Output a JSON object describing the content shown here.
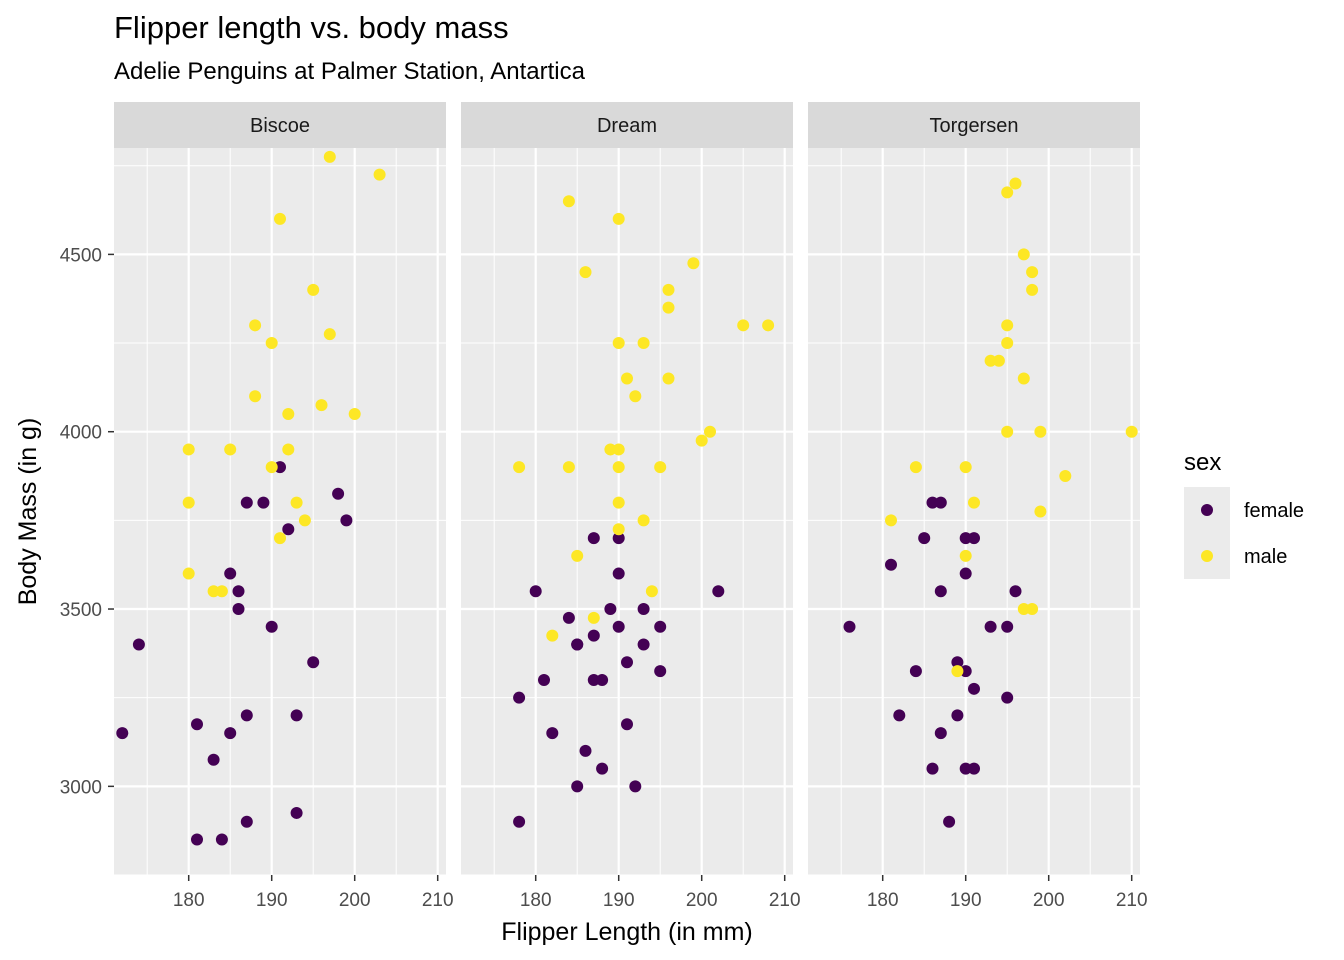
{
  "chart_data": {
    "type": "scatter",
    "title": "Flipper length vs. body mass",
    "subtitle": "Adelie Penguins at Palmer Station, Antartica",
    "xlabel": "Flipper Length (in mm)",
    "ylabel": "Body Mass (in g)",
    "xlim": [
      171,
      211
    ],
    "ylim": [
      2750,
      4800
    ],
    "xticks": [
      180,
      190,
      200,
      210
    ],
    "yticks": [
      3000,
      3500,
      4000,
      4500
    ],
    "grid": true,
    "legend": {
      "title": "sex",
      "position": "right",
      "entries": [
        {
          "name": "female",
          "color": "#440154"
        },
        {
          "name": "male",
          "color": "#FDE725"
        }
      ]
    },
    "facets": [
      {
        "name": "Biscoe",
        "series": [
          {
            "name": "female",
            "points": [
              [
                174,
                3400
              ],
              [
                172,
                3150
              ],
              [
                181,
                3175
              ],
              [
                183,
                3075
              ],
              [
                181,
                2850
              ],
              [
                184,
                2850
              ],
              [
                185,
                3150
              ],
              [
                185,
                3600
              ],
              [
                186,
                3550
              ],
              [
                186,
                3500
              ],
              [
                187,
                3800
              ],
              [
                187,
                3200
              ],
              [
                187,
                2900
              ],
              [
                189,
                3800
              ],
              [
                190,
                3450
              ],
              [
                191,
                3900
              ],
              [
                192,
                3725
              ],
              [
                193,
                3200
              ],
              [
                193,
                2925
              ],
              [
                195,
                3350
              ],
              [
                198,
                3825
              ],
              [
                199,
                3750
              ]
            ]
          },
          {
            "name": "male",
            "points": [
              [
                180,
                3950
              ],
              [
                180,
                3800
              ],
              [
                180,
                3600
              ],
              [
                183,
                3550
              ],
              [
                184,
                3550
              ],
              [
                185,
                3950
              ],
              [
                188,
                4300
              ],
              [
                188,
                4100
              ],
              [
                190,
                4250
              ],
              [
                190,
                3900
              ],
              [
                191,
                4600
              ],
              [
                191,
                3700
              ],
              [
                192,
                4050
              ],
              [
                192,
                3950
              ],
              [
                193,
                3800
              ],
              [
                194,
                3750
              ],
              [
                195,
                4400
              ],
              [
                196,
                4075
              ],
              [
                197,
                4775
              ],
              [
                197,
                4275
              ],
              [
                200,
                4050
              ],
              [
                203,
                4725
              ]
            ]
          }
        ]
      },
      {
        "name": "Dream",
        "series": [
          {
            "name": "female",
            "points": [
              [
                178,
                3250
              ],
              [
                178,
                2900
              ],
              [
                180,
                3550
              ],
              [
                181,
                3300
              ],
              [
                182,
                3150
              ],
              [
                184,
                3475
              ],
              [
                185,
                3400
              ],
              [
                185,
                3400
              ],
              [
                185,
                3000
              ],
              [
                186,
                3100
              ],
              [
                187,
                3700
              ],
              [
                187,
                3425
              ],
              [
                187,
                3300
              ],
              [
                188,
                3300
              ],
              [
                188,
                3050
              ],
              [
                189,
                3500
              ],
              [
                190,
                3700
              ],
              [
                190,
                3600
              ],
              [
                190,
                3450
              ],
              [
                191,
                3350
              ],
              [
                191,
                3175
              ],
              [
                192,
                3000
              ],
              [
                193,
                3500
              ],
              [
                193,
                3400
              ],
              [
                195,
                3450
              ],
              [
                195,
                3325
              ],
              [
                202,
                3550
              ]
            ]
          },
          {
            "name": "male",
            "points": [
              [
                178,
                3900
              ],
              [
                182,
                3425
              ],
              [
                184,
                4650
              ],
              [
                184,
                3900
              ],
              [
                185,
                3650
              ],
              [
                186,
                4450
              ],
              [
                187,
                3475
              ],
              [
                189,
                3950
              ],
              [
                190,
                4600
              ],
              [
                190,
                4250
              ],
              [
                190,
                3950
              ],
              [
                190,
                3900
              ],
              [
                190,
                3800
              ],
              [
                190,
                3725
              ],
              [
                191,
                4150
              ],
              [
                192,
                4100
              ],
              [
                193,
                4250
              ],
              [
                193,
                3750
              ],
              [
                194,
                3550
              ],
              [
                195,
                3900
              ],
              [
                196,
                4400
              ],
              [
                196,
                4350
              ],
              [
                196,
                4150
              ],
              [
                199,
                4475
              ],
              [
                200,
                3975
              ],
              [
                201,
                4000
              ],
              [
                205,
                4300
              ],
              [
                208,
                4300
              ]
            ]
          }
        ]
      },
      {
        "name": "Torgersen",
        "series": [
          {
            "name": "female",
            "points": [
              [
                176,
                3450
              ],
              [
                181,
                3625
              ],
              [
                182,
                3200
              ],
              [
                184,
                3325
              ],
              [
                185,
                3700
              ],
              [
                186,
                3800
              ],
              [
                186,
                3050
              ],
              [
                187,
                3800
              ],
              [
                187,
                3550
              ],
              [
                187,
                3150
              ],
              [
                188,
                2900
              ],
              [
                189,
                3350
              ],
              [
                189,
                3200
              ],
              [
                190,
                3700
              ],
              [
                190,
                3600
              ],
              [
                190,
                3325
              ],
              [
                190,
                3050
              ],
              [
                191,
                3700
              ],
              [
                191,
                3275
              ],
              [
                191,
                3050
              ],
              [
                193,
                3450
              ],
              [
                195,
                3450
              ],
              [
                195,
                3250
              ],
              [
                196,
                3550
              ]
            ]
          },
          {
            "name": "male",
            "points": [
              [
                181,
                3750
              ],
              [
                184,
                3900
              ],
              [
                189,
                3325
              ],
              [
                190,
                3900
              ],
              [
                190,
                3650
              ],
              [
                191,
                3800
              ],
              [
                193,
                4200
              ],
              [
                194,
                4200
              ],
              [
                195,
                4675
              ],
              [
                195,
                4300
              ],
              [
                195,
                4250
              ],
              [
                195,
                4000
              ],
              [
                196,
                4700
              ],
              [
                197,
                4500
              ],
              [
                197,
                4150
              ],
              [
                197,
                3500
              ],
              [
                198,
                4450
              ],
              [
                198,
                4400
              ],
              [
                198,
                3500
              ],
              [
                199,
                4000
              ],
              [
                199,
                3775
              ],
              [
                202,
                3875
              ],
              [
                210,
                4000
              ]
            ]
          }
        ]
      }
    ]
  }
}
